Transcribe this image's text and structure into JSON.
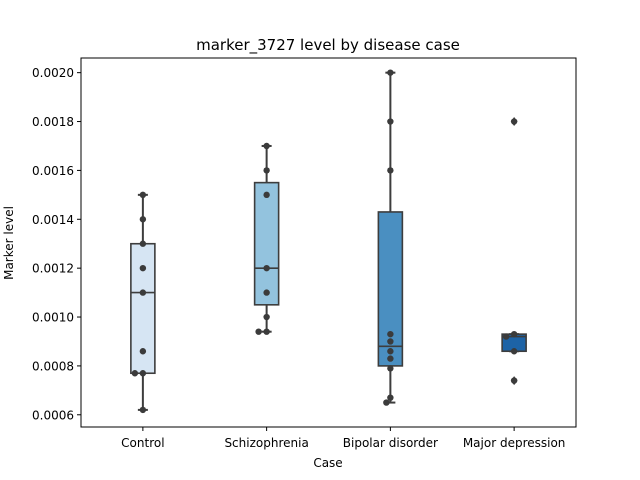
{
  "chart_data": {
    "type": "box",
    "title": "marker_3727 level by disease case",
    "xlabel": "Case",
    "ylabel": "Marker level",
    "ylim": [
      0.00055,
      0.00206
    ],
    "yticks": [
      0.0006,
      0.0008,
      0.001,
      0.0012,
      0.0014,
      0.0016,
      0.0018,
      0.002
    ],
    "ytick_labels": [
      "0.0006",
      "0.0008",
      "0.0010",
      "0.0012",
      "0.0014",
      "0.0016",
      "0.0018",
      "0.0020"
    ],
    "grid": false,
    "categories": [
      "Control",
      "Schizophrenia",
      "Bipolar disorder",
      "Major depression"
    ],
    "colors": [
      "#d6e5f3",
      "#93c3de",
      "#4a8fc1",
      "#1d63a6"
    ],
    "boxes": [
      {
        "q1": 0.00077,
        "median": 0.0011,
        "q3": 0.0013,
        "whisker_low": 0.00062,
        "whisker_high": 0.0015,
        "fliers": []
      },
      {
        "q1": 0.00105,
        "median": 0.0012,
        "q3": 0.00155,
        "whisker_low": 0.00094,
        "whisker_high": 0.0017,
        "fliers": []
      },
      {
        "q1": 0.0008,
        "median": 0.00088,
        "q3": 0.00143,
        "whisker_low": 0.00065,
        "whisker_high": 0.002,
        "fliers": []
      },
      {
        "q1": 0.00086,
        "median": 0.00092,
        "q3": 0.00093,
        "whisker_low": 0.00086,
        "whisker_high": 0.00093,
        "fliers": [
          0.0018,
          0.00074
        ]
      }
    ],
    "points": [
      [
        0.0015,
        0.0014,
        0.0013,
        0.0012,
        0.0011,
        0.00086,
        0.00077,
        0.00077,
        0.00062
      ],
      [
        0.0017,
        0.0016,
        0.0015,
        0.0012,
        0.0011,
        0.001,
        0.00094,
        0.00094
      ],
      [
        0.002,
        0.0018,
        0.0016,
        0.00093,
        0.0009,
        0.00086,
        0.00083,
        0.00079,
        0.00067,
        0.00065
      ],
      [
        0.0018,
        0.00093,
        0.00092,
        0.00086,
        0.00074
      ]
    ]
  }
}
